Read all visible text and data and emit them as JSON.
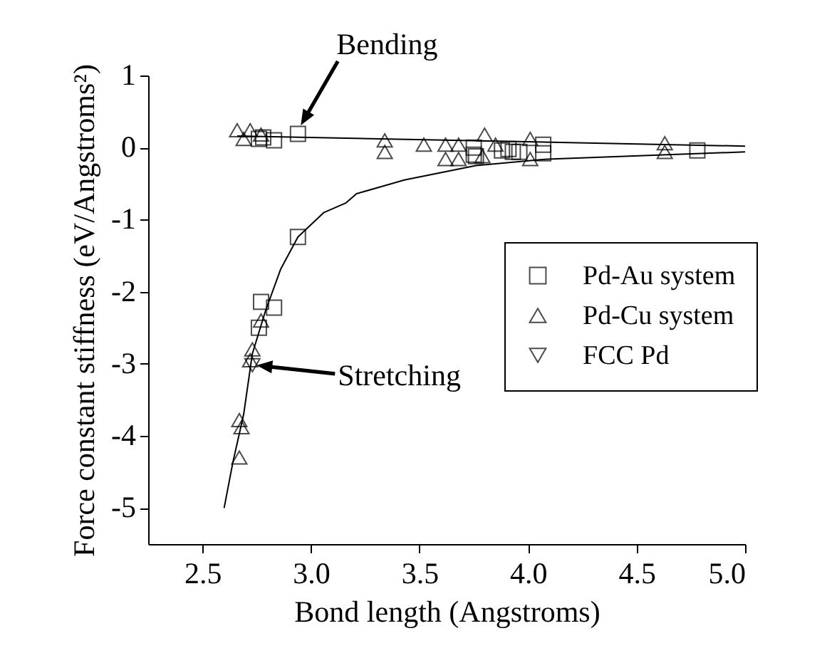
{
  "chart_data": {
    "type": "scatter",
    "xlabel": "Bond length (Angstroms)",
    "ylabel": "Force constant stiffness (eV/Angstroms²)",
    "xlim": [
      2.25,
      5.0
    ],
    "ylim": [
      -5.5,
      1
    ],
    "xticks": [
      2.5,
      {
        "value": 3,
        "label": "3.0"
      },
      3.5,
      {
        "value": 4,
        "label": "4.0"
      },
      4.5,
      {
        "value": 5,
        "label": "5.0"
      }
    ],
    "yticks": [
      -5,
      -4,
      -3,
      -2,
      -1,
      0,
      1
    ],
    "grid": false,
    "legend": "right",
    "series": [
      {
        "name": "Pd-Au system",
        "color": "#000000",
        "marker": "square",
        "x": [
          2.76,
          2.78,
          2.83,
          2.94,
          3.75,
          3.75,
          3.76,
          3.88,
          3.91,
          3.93,
          3.96,
          4.07,
          4.07,
          4.78,
          2.94,
          2.83,
          2.77,
          2.76
        ],
        "values": [
          0.12,
          0.14,
          0.1,
          0.19,
          0.0,
          -0.1,
          -0.12,
          -0.04,
          -0.02,
          -0.06,
          -0.06,
          0.04,
          -0.08,
          -0.04,
          -1.24,
          -2.22,
          -2.14,
          -2.5
        ]
      },
      {
        "name": "Pd-Cu system",
        "color": "#000000",
        "marker": "triangle",
        "x": [
          2.66,
          2.72,
          2.69,
          2.77,
          3.34,
          3.34,
          3.52,
          3.62,
          3.62,
          3.68,
          3.68,
          3.8,
          3.79,
          3.85,
          4.01,
          4.01,
          4.63,
          4.63,
          2.77,
          2.73,
          2.72,
          2.67,
          2.68,
          2.67
        ],
        "values": [
          0.24,
          0.24,
          0.12,
          0.18,
          0.1,
          -0.06,
          0.04,
          0.04,
          -0.16,
          0.04,
          -0.16,
          0.18,
          -0.12,
          0.04,
          0.12,
          -0.16,
          0.06,
          -0.06,
          -2.4,
          -2.8,
          -2.95,
          -3.78,
          -3.88,
          -4.3
        ]
      },
      {
        "name": "FCC Pd",
        "color": "#000000",
        "marker": "triangle-down",
        "x": [
          2.73
        ],
        "values": [
          -3.02
        ]
      },
      {
        "type": "line",
        "color": "#000000",
        "x": [
          2.66,
          5.0
        ],
        "values": [
          0.16,
          0.02
        ]
      },
      {
        "type": "line",
        "color": "#000000",
        "x": [
          2.6,
          2.64,
          2.69,
          2.73,
          2.79,
          2.86,
          2.94,
          3.06,
          3.16,
          3.21,
          3.43,
          3.76,
          4.09,
          5.0
        ],
        "values": [
          -5.0,
          -4.37,
          -3.7,
          -2.86,
          -2.27,
          -1.69,
          -1.24,
          -0.9,
          -0.77,
          -0.64,
          -0.45,
          -0.25,
          -0.16,
          -0.06
        ]
      }
    ],
    "annotations": [
      {
        "text": "Bending",
        "x": 2.94,
        "y": 0.19
      },
      {
        "text": "Stretching",
        "x": 2.73,
        "y": -3.0
      }
    ]
  }
}
